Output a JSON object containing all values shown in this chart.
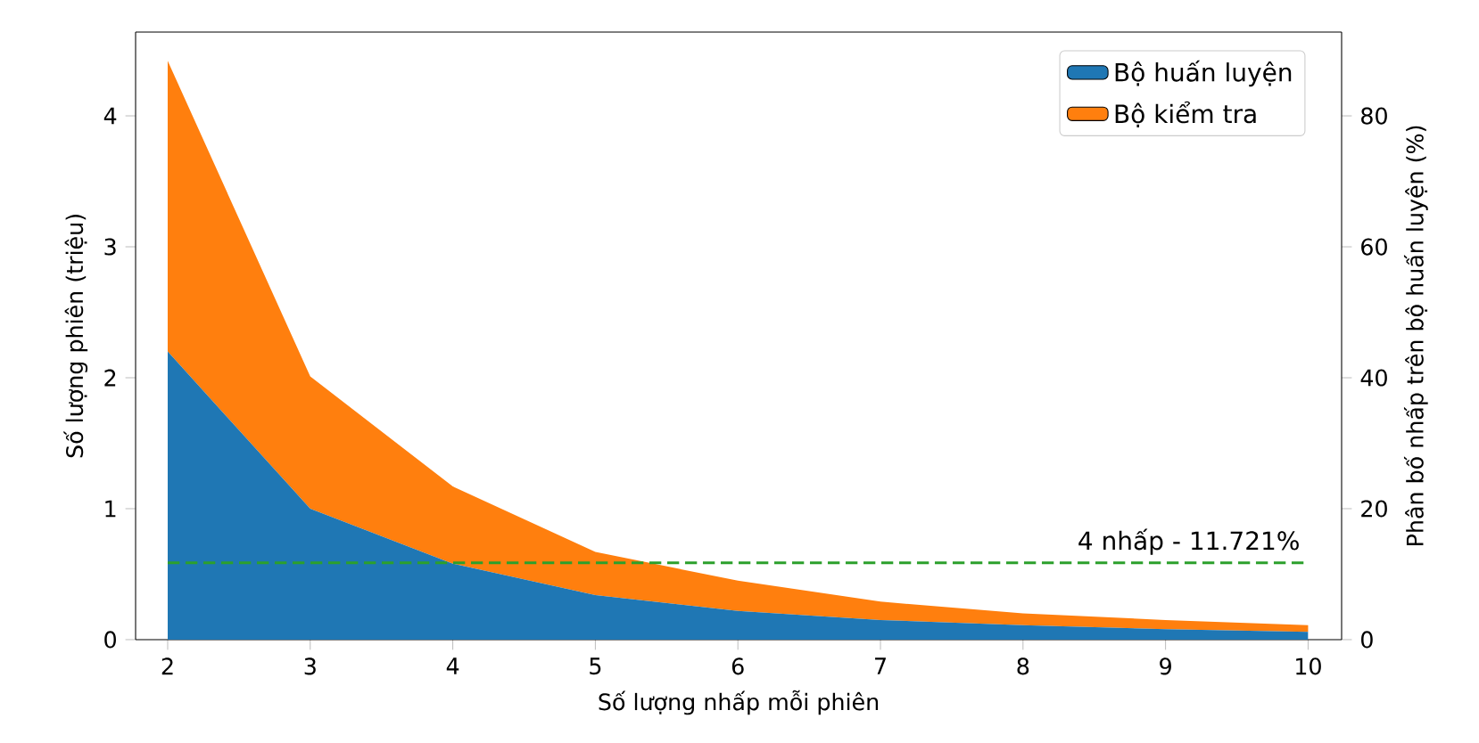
{
  "chart_data": {
    "type": "area",
    "stacked": true,
    "xlabel": "Số lượng nhấp mỗi phiên",
    "ylabel": "Số lượng phiên (triệu)",
    "y2label": "Phân bố nhấp trên bộ huấn luyện (%)",
    "x": [
      2,
      3,
      4,
      5,
      6,
      7,
      8,
      9,
      10
    ],
    "series": [
      {
        "name": "Bộ huấn luyện",
        "color": "#1f77b4",
        "values": [
          2.2,
          1.0,
          0.58,
          0.34,
          0.22,
          0.15,
          0.11,
          0.08,
          0.06
        ]
      },
      {
        "name": "Bộ kiểm tra",
        "color": "#ff7f0e",
        "values": [
          2.22,
          1.01,
          0.59,
          0.33,
          0.23,
          0.14,
          0.09,
          0.07,
          0.05
        ]
      }
    ],
    "xlim": [
      1.775,
      10.235
    ],
    "xticks": [
      2,
      3,
      4,
      5,
      6,
      7,
      8,
      9,
      10
    ],
    "ylim": [
      0,
      4.64
    ],
    "yticks": [
      0,
      1,
      2,
      3,
      4
    ],
    "y2lim": [
      0,
      92.8
    ],
    "y2ticks": [
      0,
      20,
      40,
      60,
      80
    ],
    "ref_lines": [
      {
        "axis": "y2",
        "value": 11.721,
        "label": "4 nhấp - 11.721%",
        "color": "#2ca02c",
        "line_style": "dashed"
      }
    ],
    "legend": "top right",
    "grid": false
  }
}
